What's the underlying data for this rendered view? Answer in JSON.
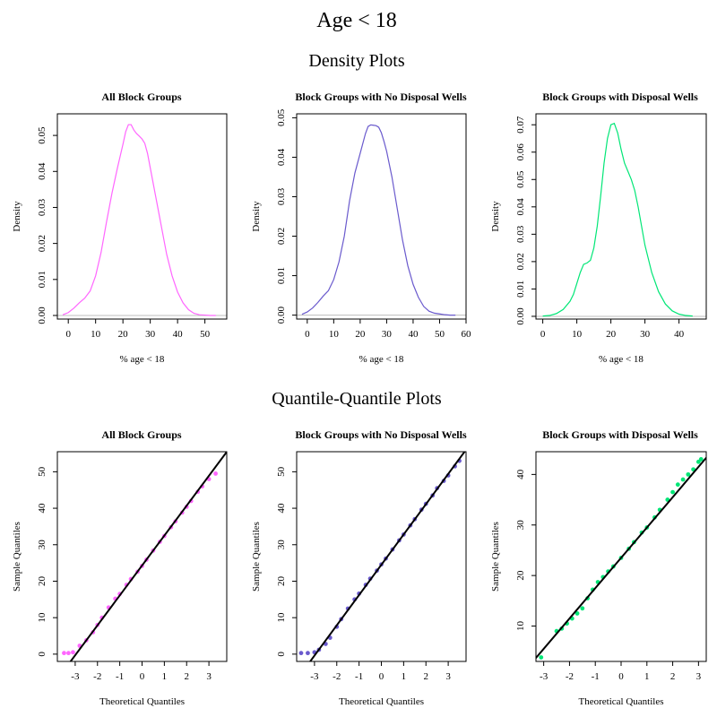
{
  "title": "Age < 18",
  "sections": {
    "density": "Density Plots",
    "qq": "Quantile-Quantile Plots"
  },
  "colors": {
    "all": "#ff66ff",
    "no_wells": "#6a5acd",
    "with_wells": "#00e676",
    "qqline": "#000000",
    "baseline": "#bdbdbd"
  },
  "chart_data": [
    {
      "type": "line",
      "id": "density-all",
      "title": "All Block Groups",
      "xlabel": "% age < 18",
      "ylabel": "Density",
      "color": "#ff66ff",
      "xlim": [
        -4,
        58
      ],
      "ylim": [
        -0.001,
        0.056
      ],
      "xticks": [
        0,
        10,
        20,
        30,
        40,
        50
      ],
      "yticks": [
        0.0,
        0.01,
        0.02,
        0.03,
        0.04,
        0.05
      ],
      "ytick_labels": [
        "0.00",
        "0.01",
        "0.02",
        "0.03",
        "0.04",
        "0.05"
      ],
      "baseline": true,
      "x": [
        -2,
        0,
        2,
        4,
        6,
        8,
        10,
        12,
        14,
        16,
        18,
        20,
        21,
        22,
        23,
        24,
        25,
        26,
        27,
        28,
        29,
        30,
        32,
        34,
        36,
        38,
        40,
        42,
        44,
        46,
        48,
        50,
        52,
        54
      ],
      "y": [
        0.0002,
        0.0008,
        0.002,
        0.0035,
        0.0048,
        0.0068,
        0.011,
        0.0175,
        0.026,
        0.034,
        0.041,
        0.0475,
        0.051,
        0.053,
        0.053,
        0.0515,
        0.0505,
        0.0498,
        0.049,
        0.0478,
        0.045,
        0.041,
        0.033,
        0.025,
        0.017,
        0.011,
        0.0065,
        0.0035,
        0.0016,
        0.0006,
        0.0002,
        0.0001,
        0.0,
        0.0
      ]
    },
    {
      "type": "line",
      "id": "density-no-wells",
      "title": "Block Groups with No Disposal Wells",
      "xlabel": "% age < 18",
      "ylabel": "Density",
      "color": "#6a5acd",
      "xlim": [
        -4,
        60
      ],
      "ylim": [
        -0.001,
        0.051
      ],
      "xticks": [
        0,
        10,
        20,
        30,
        40,
        50,
        60
      ],
      "yticks": [
        0.0,
        0.01,
        0.02,
        0.03,
        0.04,
        0.05
      ],
      "ytick_labels": [
        "0.00",
        "0.01",
        "0.02",
        "0.03",
        "0.04",
        "0.05"
      ],
      "baseline": true,
      "x": [
        -2,
        0,
        2,
        4,
        6,
        8,
        10,
        12,
        14,
        16,
        18,
        20,
        22,
        23,
        24,
        25,
        26,
        27,
        28,
        29,
        30,
        32,
        34,
        36,
        38,
        40,
        42,
        44,
        46,
        48,
        50,
        52,
        54,
        56
      ],
      "y": [
        0.0002,
        0.0008,
        0.0018,
        0.0032,
        0.0048,
        0.0062,
        0.009,
        0.0135,
        0.02,
        0.029,
        0.036,
        0.041,
        0.046,
        0.0478,
        0.0482,
        0.0481,
        0.048,
        0.0476,
        0.0462,
        0.044,
        0.0415,
        0.035,
        0.027,
        0.019,
        0.0125,
        0.0078,
        0.0045,
        0.0022,
        0.001,
        0.0005,
        0.0003,
        0.0001,
        0.0,
        0.0
      ]
    },
    {
      "type": "line",
      "id": "density-with-wells",
      "title": "Block Groups with Disposal Wells",
      "xlabel": "% age < 18",
      "ylabel": "Density",
      "color": "#00e676",
      "xlim": [
        -2,
        48
      ],
      "ylim": [
        -0.001,
        0.074
      ],
      "xticks": [
        0,
        10,
        20,
        30,
        40
      ],
      "yticks": [
        0.0,
        0.01,
        0.02,
        0.03,
        0.04,
        0.05,
        0.06,
        0.07
      ],
      "ytick_labels": [
        "0.00",
        "0.01",
        "0.02",
        "0.03",
        "0.04",
        "0.05",
        "0.06",
        "0.07"
      ],
      "baseline": true,
      "x": [
        0,
        2,
        4,
        6,
        8,
        9,
        10,
        11,
        12,
        13,
        14,
        15,
        16,
        17,
        18,
        19,
        20,
        21,
        22,
        23,
        24,
        25,
        26,
        27,
        28,
        29,
        30,
        32,
        34,
        36,
        38,
        40,
        42,
        44
      ],
      "y": [
        0.0001,
        0.0003,
        0.001,
        0.0025,
        0.0055,
        0.008,
        0.012,
        0.016,
        0.019,
        0.0195,
        0.0205,
        0.025,
        0.033,
        0.044,
        0.056,
        0.065,
        0.07,
        0.0705,
        0.067,
        0.061,
        0.056,
        0.053,
        0.05,
        0.046,
        0.04,
        0.033,
        0.026,
        0.016,
        0.009,
        0.0045,
        0.002,
        0.0008,
        0.0003,
        0.0001
      ]
    },
    {
      "type": "scatter",
      "id": "qq-all",
      "title": "All Block Groups",
      "xlabel": "Theoretical Quantiles",
      "ylabel": "Sample Quantiles",
      "color": "#ff66ff",
      "xlim": [
        -3.8,
        3.8
      ],
      "ylim": [
        -2,
        55.5
      ],
      "xticks": [
        -3,
        -2,
        -1,
        0,
        1,
        2,
        3
      ],
      "yticks": [
        0,
        10,
        20,
        30,
        40,
        50
      ],
      "ytick_labels": [
        "0",
        "10",
        "20",
        "30",
        "40",
        "50"
      ],
      "qqline": {
        "intercept": 24.3,
        "slope": 8.2
      },
      "x": [
        -3.5,
        -3.3,
        -3.1,
        -2.8,
        -2.5,
        -2.2,
        -2.0,
        -1.8,
        -1.5,
        -1.2,
        -1.0,
        -0.7,
        -0.5,
        -0.2,
        0.0,
        0.2,
        0.5,
        0.8,
        1.0,
        1.3,
        1.5,
        1.8,
        2.0,
        2.2,
        2.5,
        2.7,
        3.0,
        3.3
      ],
      "y": [
        0.3,
        0.3,
        0.5,
        2.3,
        3.8,
        6.0,
        8.0,
        10.0,
        12.8,
        15.2,
        16.5,
        19.0,
        20.6,
        22.6,
        24.2,
        25.9,
        28.4,
        30.8,
        32.4,
        34.8,
        36.4,
        38.8,
        40.4,
        42.0,
        44.5,
        46.0,
        48.0,
        49.5
      ]
    },
    {
      "type": "scatter",
      "id": "qq-no-wells",
      "title": "Block Groups with No Disposal Wells",
      "xlabel": "Theoretical Quantiles",
      "ylabel": "Sample Quantiles",
      "color": "#6a5acd",
      "xlim": [
        -3.8,
        3.8
      ],
      "ylim": [
        -2,
        55.5
      ],
      "xticks": [
        -3,
        -2,
        -1,
        0,
        1,
        2,
        3
      ],
      "yticks": [
        0,
        10,
        20,
        30,
        40,
        50
      ],
      "ytick_labels": [
        "0",
        "10",
        "20",
        "30",
        "40",
        "50"
      ],
      "qqline": {
        "intercept": 24.5,
        "slope": 8.3
      },
      "x": [
        -3.6,
        -3.3,
        -3.0,
        -2.8,
        -2.5,
        -2.3,
        -2.0,
        -1.8,
        -1.5,
        -1.2,
        -1.0,
        -0.7,
        -0.5,
        -0.2,
        0.0,
        0.2,
        0.5,
        0.8,
        1.0,
        1.3,
        1.5,
        1.8,
        2.0,
        2.3,
        2.5,
        2.8,
        3.0,
        3.3,
        3.5
      ],
      "y": [
        0.3,
        0.3,
        0.5,
        1.2,
        2.8,
        4.5,
        7.5,
        9.6,
        12.5,
        15.0,
        16.6,
        19.0,
        20.7,
        22.9,
        24.6,
        26.2,
        28.7,
        31.2,
        32.8,
        35.3,
        37.0,
        39.6,
        41.2,
        43.5,
        45.5,
        47.5,
        49.0,
        51.5,
        53.0
      ]
    },
    {
      "type": "scatter",
      "id": "qq-with-wells",
      "title": "Block Groups with Disposal Wells",
      "xlabel": "Theoretical Quantiles",
      "ylabel": "Sample Quantiles",
      "color": "#00e676",
      "xlim": [
        -3.3,
        3.3
      ],
      "ylim": [
        3,
        44.5
      ],
      "xticks": [
        -3,
        -2,
        -1,
        0,
        1,
        2,
        3
      ],
      "yticks": [
        10,
        20,
        30,
        40
      ],
      "ytick_labels": [
        "10",
        "20",
        "30",
        "40"
      ],
      "qqline": {
        "intercept": 23.5,
        "slope": 6.0
      },
      "x": [
        -3.1,
        -2.5,
        -2.3,
        -2.1,
        -1.9,
        -1.7,
        -1.5,
        -1.3,
        -1.1,
        -0.9,
        -0.7,
        -0.5,
        -0.3,
        0.0,
        0.3,
        0.5,
        0.8,
        1.0,
        1.3,
        1.5,
        1.8,
        2.0,
        2.2,
        2.4,
        2.6,
        2.8,
        3.0,
        3.1
      ],
      "y": [
        3.8,
        9.0,
        9.5,
        10.5,
        11.5,
        12.5,
        13.5,
        15.5,
        17.2,
        18.7,
        19.7,
        20.8,
        21.8,
        23.5,
        25.3,
        26.6,
        28.5,
        29.5,
        31.5,
        33.0,
        35.0,
        36.5,
        38.0,
        39.0,
        40.0,
        41.0,
        42.5,
        43.0
      ]
    }
  ]
}
